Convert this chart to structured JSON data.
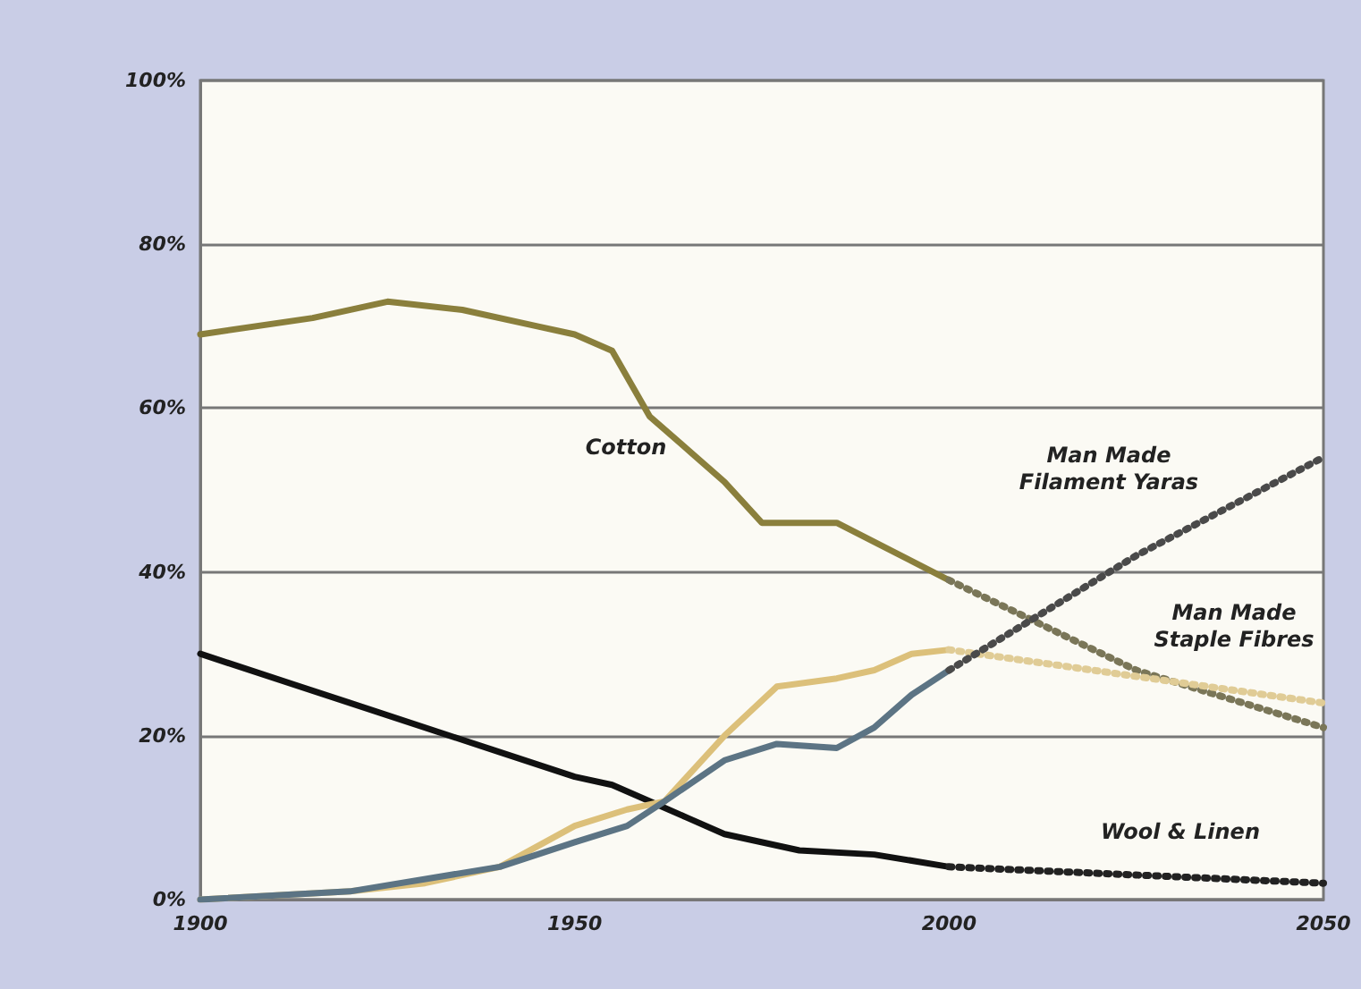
{
  "chart_data": {
    "type": "line",
    "xlim": [
      1900,
      2050
    ],
    "xticks": [
      1900,
      1950,
      2000,
      2050
    ],
    "ylim": [
      0,
      100
    ],
    "yticks": [
      {
        "value": 0,
        "label": "0%"
      },
      {
        "value": 20,
        "label": "20%"
      },
      {
        "value": 40,
        "label": "40%"
      },
      {
        "value": 60,
        "label": "60%"
      },
      {
        "value": 80,
        "label": "80%"
      },
      {
        "value": 100,
        "label": "100%"
      }
    ],
    "grid": "y",
    "marker": "none",
    "series": [
      {
        "color": "#8a7f3c",
        "line_style": "solid",
        "x": [
          1900,
          1915,
          1925,
          1935,
          1945,
          1950,
          1955,
          1960,
          1970,
          1975,
          1985,
          2000
        ],
        "values": [
          69,
          71,
          73,
          72,
          70,
          69,
          67,
          59,
          51,
          46,
          46,
          39
        ]
      },
      {
        "color": "#7a7658",
        "line_style": "dotted",
        "x": [
          2000,
          2025,
          2050
        ],
        "values": [
          39,
          28,
          21
        ]
      },
      {
        "color": "#111111",
        "line_style": "solid",
        "x": [
          1900,
          1920,
          1940,
          1950,
          1955,
          1960,
          1965,
          1970,
          1980,
          1990,
          2000
        ],
        "values": [
          30,
          24,
          18,
          15,
          14,
          12,
          10,
          8,
          6,
          5.5,
          4
        ]
      },
      {
        "color": "#222222",
        "line_style": "dotted",
        "x": [
          2000,
          2050
        ],
        "values": [
          4,
          2
        ]
      },
      {
        "color": "#dcc07a",
        "line_style": "solid",
        "x": [
          1900,
          1920,
          1930,
          1940,
          1950,
          1957,
          1962,
          1970,
          1977,
          1985,
          1990,
          1995,
          2000
        ],
        "values": [
          0,
          1,
          2,
          4,
          9,
          11,
          12,
          20,
          26,
          27,
          28,
          30,
          30.5
        ]
      },
      {
        "color": "#e0cc96",
        "line_style": "dotted",
        "x": [
          2000,
          2050
        ],
        "values": [
          30.5,
          24
        ]
      },
      {
        "color": "#5c7484",
        "line_style": "solid",
        "x": [
          1900,
          1920,
          1940,
          1950,
          1957,
          1962,
          1970,
          1977,
          1985,
          1990,
          1995,
          2000
        ],
        "values": [
          0,
          1,
          4,
          7,
          9,
          12,
          17,
          19,
          18.5,
          21,
          25,
          28
        ]
      },
      {
        "color": "#4a4a4a",
        "line_style": "dotted",
        "x": [
          2000,
          2025,
          2050
        ],
        "values": [
          28,
          42,
          54
        ]
      }
    ],
    "annotations": [
      "Cotton",
      "Man Made\nFilament Yaras",
      "Man Made\nStaple Fibres",
      "Wool & Linen"
    ]
  }
}
